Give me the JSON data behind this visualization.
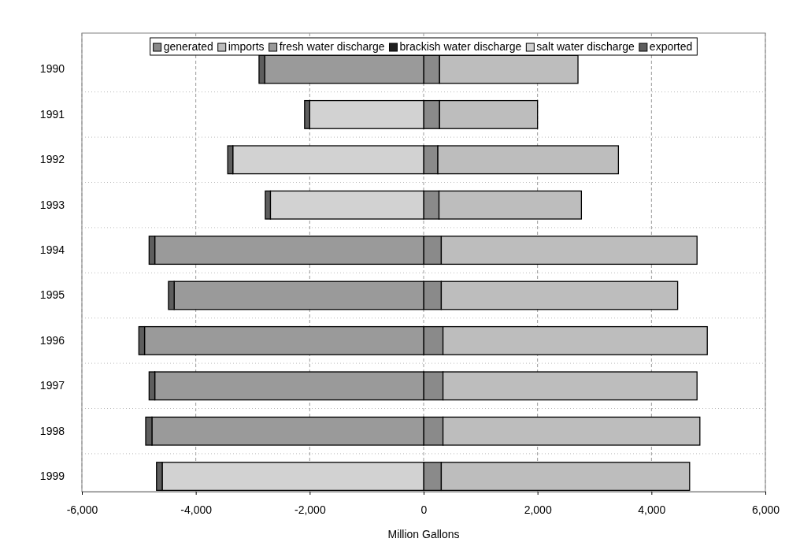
{
  "chart_data": {
    "type": "bar",
    "orientation": "horizontal",
    "stacked": true,
    "xlabel": "Million Gallons",
    "categories": [
      "1990",
      "1991",
      "1992",
      "1993",
      "1994",
      "1995",
      "1996",
      "1997",
      "1998",
      "1999"
    ],
    "series": [
      {
        "name": "generated",
        "color": "#8a8a8a",
        "values": [
          280,
          280,
          250,
          270,
          310,
          310,
          340,
          340,
          340,
          310
        ]
      },
      {
        "name": "imports",
        "color": "#bdbdbd",
        "values": [
          2430,
          1720,
          3170,
          2500,
          4490,
          4150,
          4640,
          4460,
          4510,
          4360
        ]
      },
      {
        "name": "fresh water discharge",
        "color": "#9a9a9a",
        "values": [
          -2790,
          0,
          0,
          0,
          -4720,
          -4380,
          -4900,
          -4720,
          -4770,
          0
        ]
      },
      {
        "name": "brackish water discharge",
        "color": "#202020",
        "values": [
          0,
          0,
          0,
          0,
          0,
          0,
          0,
          0,
          0,
          0
        ]
      },
      {
        "name": "salt water discharge",
        "color": "#d2d2d2",
        "values": [
          0,
          -2000,
          -3350,
          -2690,
          0,
          0,
          0,
          0,
          0,
          -4590
        ]
      },
      {
        "name": "exported",
        "color": "#5e5e5e",
        "values": [
          -100,
          -90,
          -90,
          -90,
          -100,
          -100,
          -100,
          -100,
          -110,
          -100
        ]
      }
    ],
    "xlim": [
      -6000,
      6000
    ],
    "xticks": [
      {
        "value": -6000,
        "label": "-6,000"
      },
      {
        "value": -4000,
        "label": "-4,000"
      },
      {
        "value": -2000,
        "label": "-2,000"
      },
      0,
      {
        "value": 2000,
        "label": "2,000"
      },
      {
        "value": 4000,
        "label": "4,000"
      },
      {
        "value": 6000,
        "label": "6,000"
      }
    ],
    "grid": true,
    "legend": "top"
  }
}
